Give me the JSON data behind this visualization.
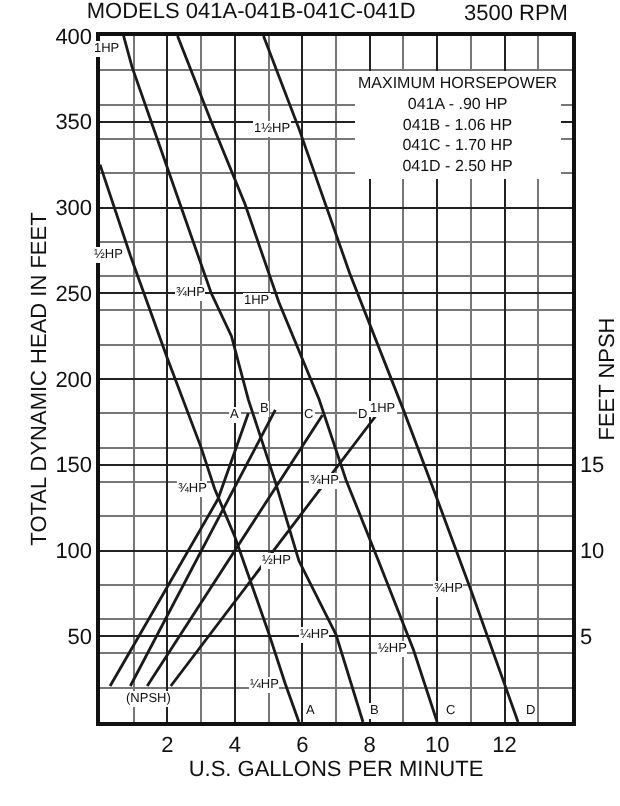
{
  "chart_data": {
    "type": "line",
    "title": "MODELS 041A-041B-041C-041D",
    "subtitle": "3500 RPM",
    "xlabel": "U.S. GALLONS PER MINUTE",
    "ylabel": "TOTAL DYNAMIC HEAD IN FEET",
    "y2label": "FEET NPSH",
    "xlim": [
      0,
      14
    ],
    "xticks": [
      {
        "value": 0,
        "label": null
      },
      2,
      4,
      6,
      8,
      10,
      12,
      {
        "value": 14,
        "label": null
      }
    ],
    "ylim": [
      0,
      400
    ],
    "yticks": [
      {
        "value": 0,
        "label": null
      },
      50,
      100,
      150,
      200,
      250,
      300,
      350,
      400
    ],
    "y2lim": [
      0,
      40
    ],
    "y2ticks": [
      5,
      10,
      15
    ],
    "grid": true,
    "marker": "none",
    "line_style": "solid",
    "series": [
      {
        "color": "#1a1a1a",
        "x": [
          0,
          0.9,
          2,
          3,
          3.4,
          4,
          5,
          5.5,
          5.9
        ],
        "values": [
          325,
          272,
          212,
          160,
          136,
          108,
          52,
          22,
          0
        ]
      },
      {
        "color": "#1a1a1a",
        "x": [
          0.7,
          0.95,
          2,
          3.3,
          3.9,
          4.4,
          5.2,
          5.9,
          7,
          7.8
        ],
        "values": [
          400,
          382,
          323,
          250,
          225,
          188,
          140,
          94,
          51,
          0
        ]
      },
      {
        "color": "#1a1a1a",
        "x": [
          2.3,
          3.3,
          4.3,
          5.3,
          6.5,
          7.3,
          8.3,
          9.3,
          10
        ],
        "values": [
          400,
          350,
          302,
          245,
          188,
          141,
          92,
          42,
          0
        ]
      },
      {
        "color": "#1a1a1a",
        "x": [
          4.85,
          5.9,
          7.4,
          9,
          10,
          11,
          12.4
        ],
        "values": [
          400,
          346,
          262,
          182,
          130,
          77,
          0
        ]
      },
      {
        "color": "#1a1a1a",
        "axis": "y2",
        "x": [
          0.3,
          3.5,
          4.4
        ],
        "values": [
          2.1,
          13,
          18
        ]
      },
      {
        "color": "#1a1a1a",
        "axis": "y2",
        "x": [
          0.9,
          5.2
        ],
        "values": [
          2.1,
          18.2
        ]
      },
      {
        "color": "#1a1a1a",
        "axis": "y2",
        "x": [
          1.4,
          6.6
        ],
        "values": [
          2.1,
          17.9
        ]
      },
      {
        "color": "#1a1a1a",
        "axis": "y2",
        "x": [
          2.1,
          8.2
        ],
        "values": [
          2.1,
          17.9
        ]
      }
    ],
    "annotations": [
      "MAXIMUM HORSEPOWER\n041A - .90 HP\n041B - 1.06 HP\n041C - 1.70 HP\n041D - 2.50 HP",
      {
        "text": "1HP",
        "x": 0.7,
        "y": 400
      },
      {
        "text": "½HP",
        "x": 0.9,
        "y": 272
      },
      {
        "text": "¾HP",
        "x": 3.3,
        "y": 250
      },
      {
        "text": "1HP",
        "x": 5.3,
        "y": 245
      },
      {
        "text": "1½HP",
        "x": 5.9,
        "y": 346
      },
      {
        "text": "¾HP",
        "x": 3.4,
        "y": 136
      },
      {
        "text": "½HP",
        "x": 5.9,
        "y": 94
      },
      {
        "text": "¼HP",
        "x": 7,
        "y": 51
      },
      {
        "text": "¼HP",
        "x": 5.5,
        "y": 22
      },
      {
        "text": "¾HP",
        "x": 7.3,
        "y": 141
      },
      {
        "text": "½HP",
        "x": 9.3,
        "y": 42
      },
      {
        "text": "1HP",
        "x": 9,
        "y": 182
      },
      {
        "text": "¾HP",
        "x": 11,
        "y": 77
      },
      {
        "text": "A",
        "x": 4.4,
        "y": 179
      },
      {
        "text": "B",
        "x": 5.2,
        "y": 182
      },
      {
        "text": "C",
        "x": 6.6,
        "y": 179
      },
      {
        "text": "D",
        "x": 8.2,
        "y": 179
      },
      {
        "text": "A",
        "x": 5.9,
        "y": 0
      },
      {
        "text": "B",
        "x": 7.8,
        "y": 0
      },
      {
        "text": "C",
        "x": 10,
        "y": 0
      },
      {
        "text": "D",
        "x": 12.4,
        "y": 0
      },
      {
        "text": "(NPSH)",
        "x": 1.4,
        "y": 21
      }
    ]
  }
}
